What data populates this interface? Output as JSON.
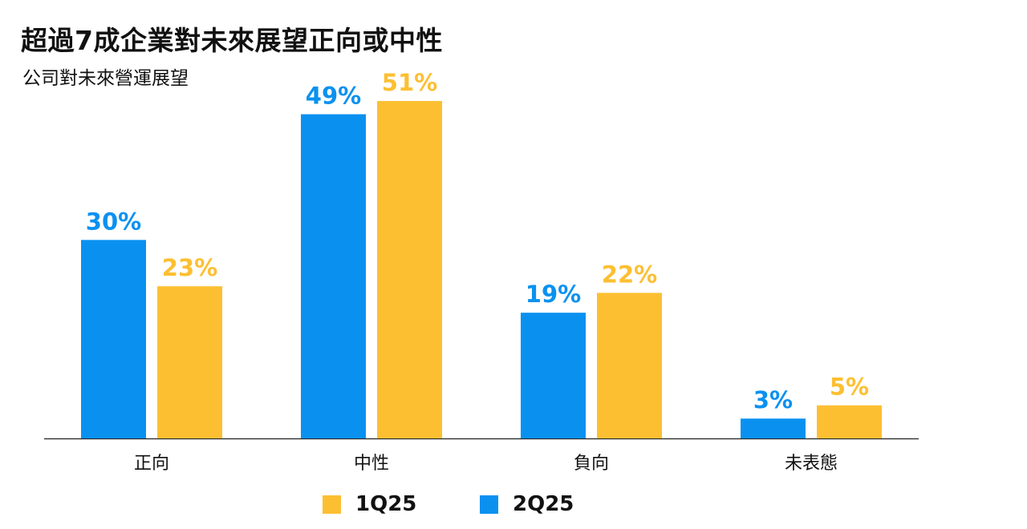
{
  "header": {
    "title": "超過7成企業對未來展望正向或中性",
    "subtitle": "公司對未來營運展望"
  },
  "colors": {
    "q1": "#FDBF32",
    "q2": "#0A91F0",
    "axis": "#222222"
  },
  "chart_data": {
    "type": "bar",
    "title": "超過7成企業對未來展望正向或中性",
    "subtitle": "公司對未來營運展望",
    "categories": [
      "正向",
      "中性",
      "負向",
      "未表態"
    ],
    "series": [
      {
        "name": "2Q25",
        "color": "#0A91F0",
        "values": [
          30,
          49,
          19,
          3
        ]
      },
      {
        "name": "1Q25",
        "color": "#FDBF32",
        "values": [
          23,
          51,
          22,
          5
        ]
      }
    ],
    "value_suffix": "%",
    "ylim": [
      0,
      55
    ],
    "grid": false,
    "legend_position": "bottom-center",
    "legend_order": [
      "1Q25",
      "2Q25"
    ]
  }
}
